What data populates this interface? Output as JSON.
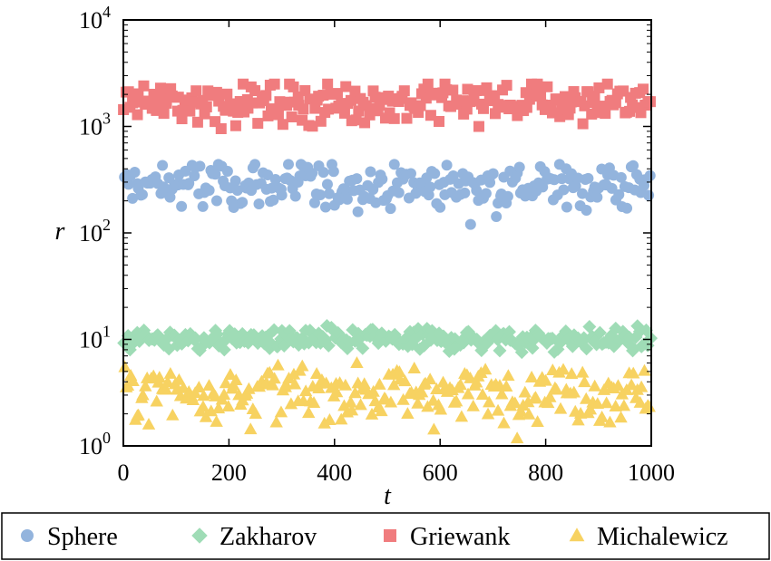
{
  "chart_data": {
    "type": "scatter",
    "title": "",
    "xlabel": "t",
    "ylabel": "r",
    "xlim": [
      0,
      1000
    ],
    "ylim": [
      1,
      10000
    ],
    "yscale": "log",
    "grid": false,
    "legend_placement": "bottom",
    "x_ticks": [
      "0",
      "200",
      "400",
      "600",
      "800",
      "1000"
    ],
    "y_ticks": [
      {
        "base": "10",
        "exp": "0",
        "value": 1
      },
      {
        "base": "10",
        "exp": "1",
        "value": 10
      },
      {
        "base": "10",
        "exp": "2",
        "value": 100
      },
      {
        "base": "10",
        "exp": "3",
        "value": 1000
      },
      {
        "base": "10",
        "exp": "4",
        "value": 10000
      }
    ],
    "series": [
      {
        "name": "Sphere",
        "marker": "circle",
        "color": "#93b4dd",
        "center": 280,
        "spread": 0.22,
        "min": 75,
        "max": 440
      },
      {
        "name": "Zakharov",
        "marker": "diamond",
        "color": "#9fdcb6",
        "center": 10,
        "spread": 0.1,
        "min": 6,
        "max": 20
      },
      {
        "name": "Griewank",
        "marker": "square",
        "color": "#f07c7e",
        "center": 1700,
        "spread": 0.18,
        "min": 600,
        "max": 2500
      },
      {
        "name": "Michalewicz",
        "marker": "triangle",
        "color": "#f7d261",
        "center": 3.2,
        "spread": 0.25,
        "min": 1.1,
        "max": 6
      }
    ],
    "points_per_series": 250
  }
}
